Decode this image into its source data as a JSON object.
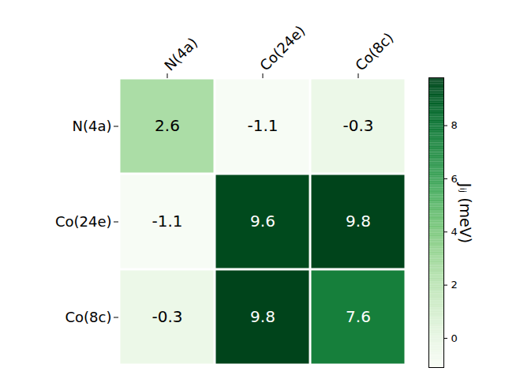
{
  "chart_data": {
    "type": "heatmap",
    "x_categories": [
      "N(4a)",
      "Co(24e)",
      "Co(8c)"
    ],
    "y_categories": [
      "N(4a)",
      "Co(24e)",
      "Co(8c)"
    ],
    "values": [
      [
        2.6,
        -1.1,
        -0.3
      ],
      [
        -1.1,
        9.6,
        9.8
      ],
      [
        -0.3,
        9.8,
        7.6
      ]
    ],
    "data_labels": true,
    "colorbar": {
      "label": "Jᵢⱼ (meV)",
      "range": [
        -1.1,
        9.8
      ],
      "ticks": [
        0,
        2,
        4,
        6,
        8
      ]
    }
  }
}
